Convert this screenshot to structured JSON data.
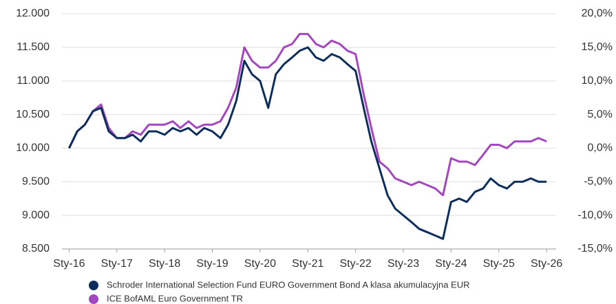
{
  "chart_data": {
    "type": "line",
    "x": [
      2016,
      2016.17,
      2016.33,
      2016.5,
      2016.67,
      2016.83,
      2017,
      2017.17,
      2017.33,
      2017.5,
      2017.67,
      2017.83,
      2018,
      2018.17,
      2018.33,
      2018.5,
      2018.67,
      2018.83,
      2019,
      2019.17,
      2019.33,
      2019.5,
      2019.67,
      2019.83,
      2020,
      2020.17,
      2020.33,
      2020.5,
      2020.67,
      2020.83,
      2021,
      2021.17,
      2021.33,
      2021.5,
      2021.67,
      2021.83,
      2022,
      2022.17,
      2022.33,
      2022.5,
      2022.67,
      2022.83,
      2023,
      2023.17,
      2023.33,
      2023.5,
      2023.67,
      2023.83,
      2024,
      2024.17,
      2024.33,
      2024.5,
      2024.67,
      2024.83,
      2025,
      2025.17,
      2025.33,
      2025.5,
      2025.67,
      2025.83,
      2026
    ],
    "series": [
      {
        "name": "Schroder International Selection Fund EURO Government Bond A klasa akumulacyjna EUR",
        "color": "#0d2d5a",
        "values": [
          10000,
          10250,
          10350,
          10550,
          10600,
          10250,
          10150,
          10150,
          10200,
          10100,
          10250,
          10250,
          10200,
          10300,
          10250,
          10300,
          10200,
          10300,
          10250,
          10150,
          10350,
          10700,
          11300,
          11100,
          11000,
          10600,
          11100,
          11250,
          11350,
          11450,
          11500,
          11350,
          11300,
          11400,
          11350,
          11250,
          11150,
          10600,
          10100,
          9700,
          9300,
          9100,
          9000,
          8900,
          8800,
          8750,
          8700,
          8650,
          9200,
          9250,
          9200,
          9350,
          9400,
          9550,
          9450,
          9400,
          9500,
          9500,
          9550,
          9500,
          9500
        ]
      },
      {
        "name": "ICE BofAML Euro Government TR",
        "color": "#a346c0",
        "axis": "y2",
        "values": [
          0,
          2.5,
          3.5,
          5.5,
          6.5,
          3,
          1.5,
          1.5,
          2.5,
          2,
          3.5,
          3.5,
          3.5,
          4,
          3,
          4,
          3,
          3.5,
          3.5,
          4,
          6,
          9,
          15,
          13,
          12,
          12,
          13,
          15,
          15.5,
          17,
          17,
          15.5,
          15,
          16,
          15.5,
          14.5,
          14,
          8,
          3,
          -2,
          -3,
          -4.5,
          -5,
          -5.5,
          -5,
          -5.5,
          -6,
          -7,
          -1.5,
          -2,
          -2,
          -2.5,
          -1,
          0.5,
          0.5,
          0,
          1,
          1,
          1,
          1.5,
          1
        ]
      }
    ],
    "xlim": [
      2015.85,
      2026.2
    ],
    "xticks": [
      {
        "value": 2016,
        "label": "Sty-16"
      },
      {
        "value": 2017,
        "label": "Sty-17"
      },
      {
        "value": 2018,
        "label": "Sty-18"
      },
      {
        "value": 2019,
        "label": "Sty-19"
      },
      {
        "value": 2020,
        "label": "Sty-20"
      },
      {
        "value": 2021,
        "label": "Sty-21"
      },
      {
        "value": 2022,
        "label": "Sty-22"
      },
      {
        "value": 2023,
        "label": "Sty-23"
      },
      {
        "value": 2024,
        "label": "Sty-24"
      },
      {
        "value": 2025,
        "label": "Sty-25"
      },
      {
        "value": 2026,
        "label": "Sty-26"
      }
    ],
    "ylim": [
      8500,
      12000
    ],
    "yticks": [
      {
        "value": 8500,
        "label": "8.500"
      },
      {
        "value": 9000,
        "label": "9.000"
      },
      {
        "value": 9500,
        "label": "9.500"
      },
      {
        "value": 10000,
        "label": "10.000"
      },
      {
        "value": 10500,
        "label": "10.500"
      },
      {
        "value": 11000,
        "label": "11.000"
      },
      {
        "value": 11500,
        "label": "11.500"
      },
      {
        "value": 12000,
        "label": "12.000"
      }
    ],
    "y2lim": [
      -15,
      20
    ],
    "y2ticks": [
      {
        "value": -15,
        "label": "-15,0%"
      },
      {
        "value": -10,
        "label": "-10,0%"
      },
      {
        "value": -5,
        "label": "-5,0%"
      },
      {
        "value": 0,
        "label": "0,0%"
      },
      {
        "value": 5,
        "label": "5,0%"
      },
      {
        "value": 10,
        "label": "10,0%"
      },
      {
        "value": 15,
        "label": "15,0%"
      },
      {
        "value": 20,
        "label": "20,0%"
      }
    ],
    "grid": true
  }
}
